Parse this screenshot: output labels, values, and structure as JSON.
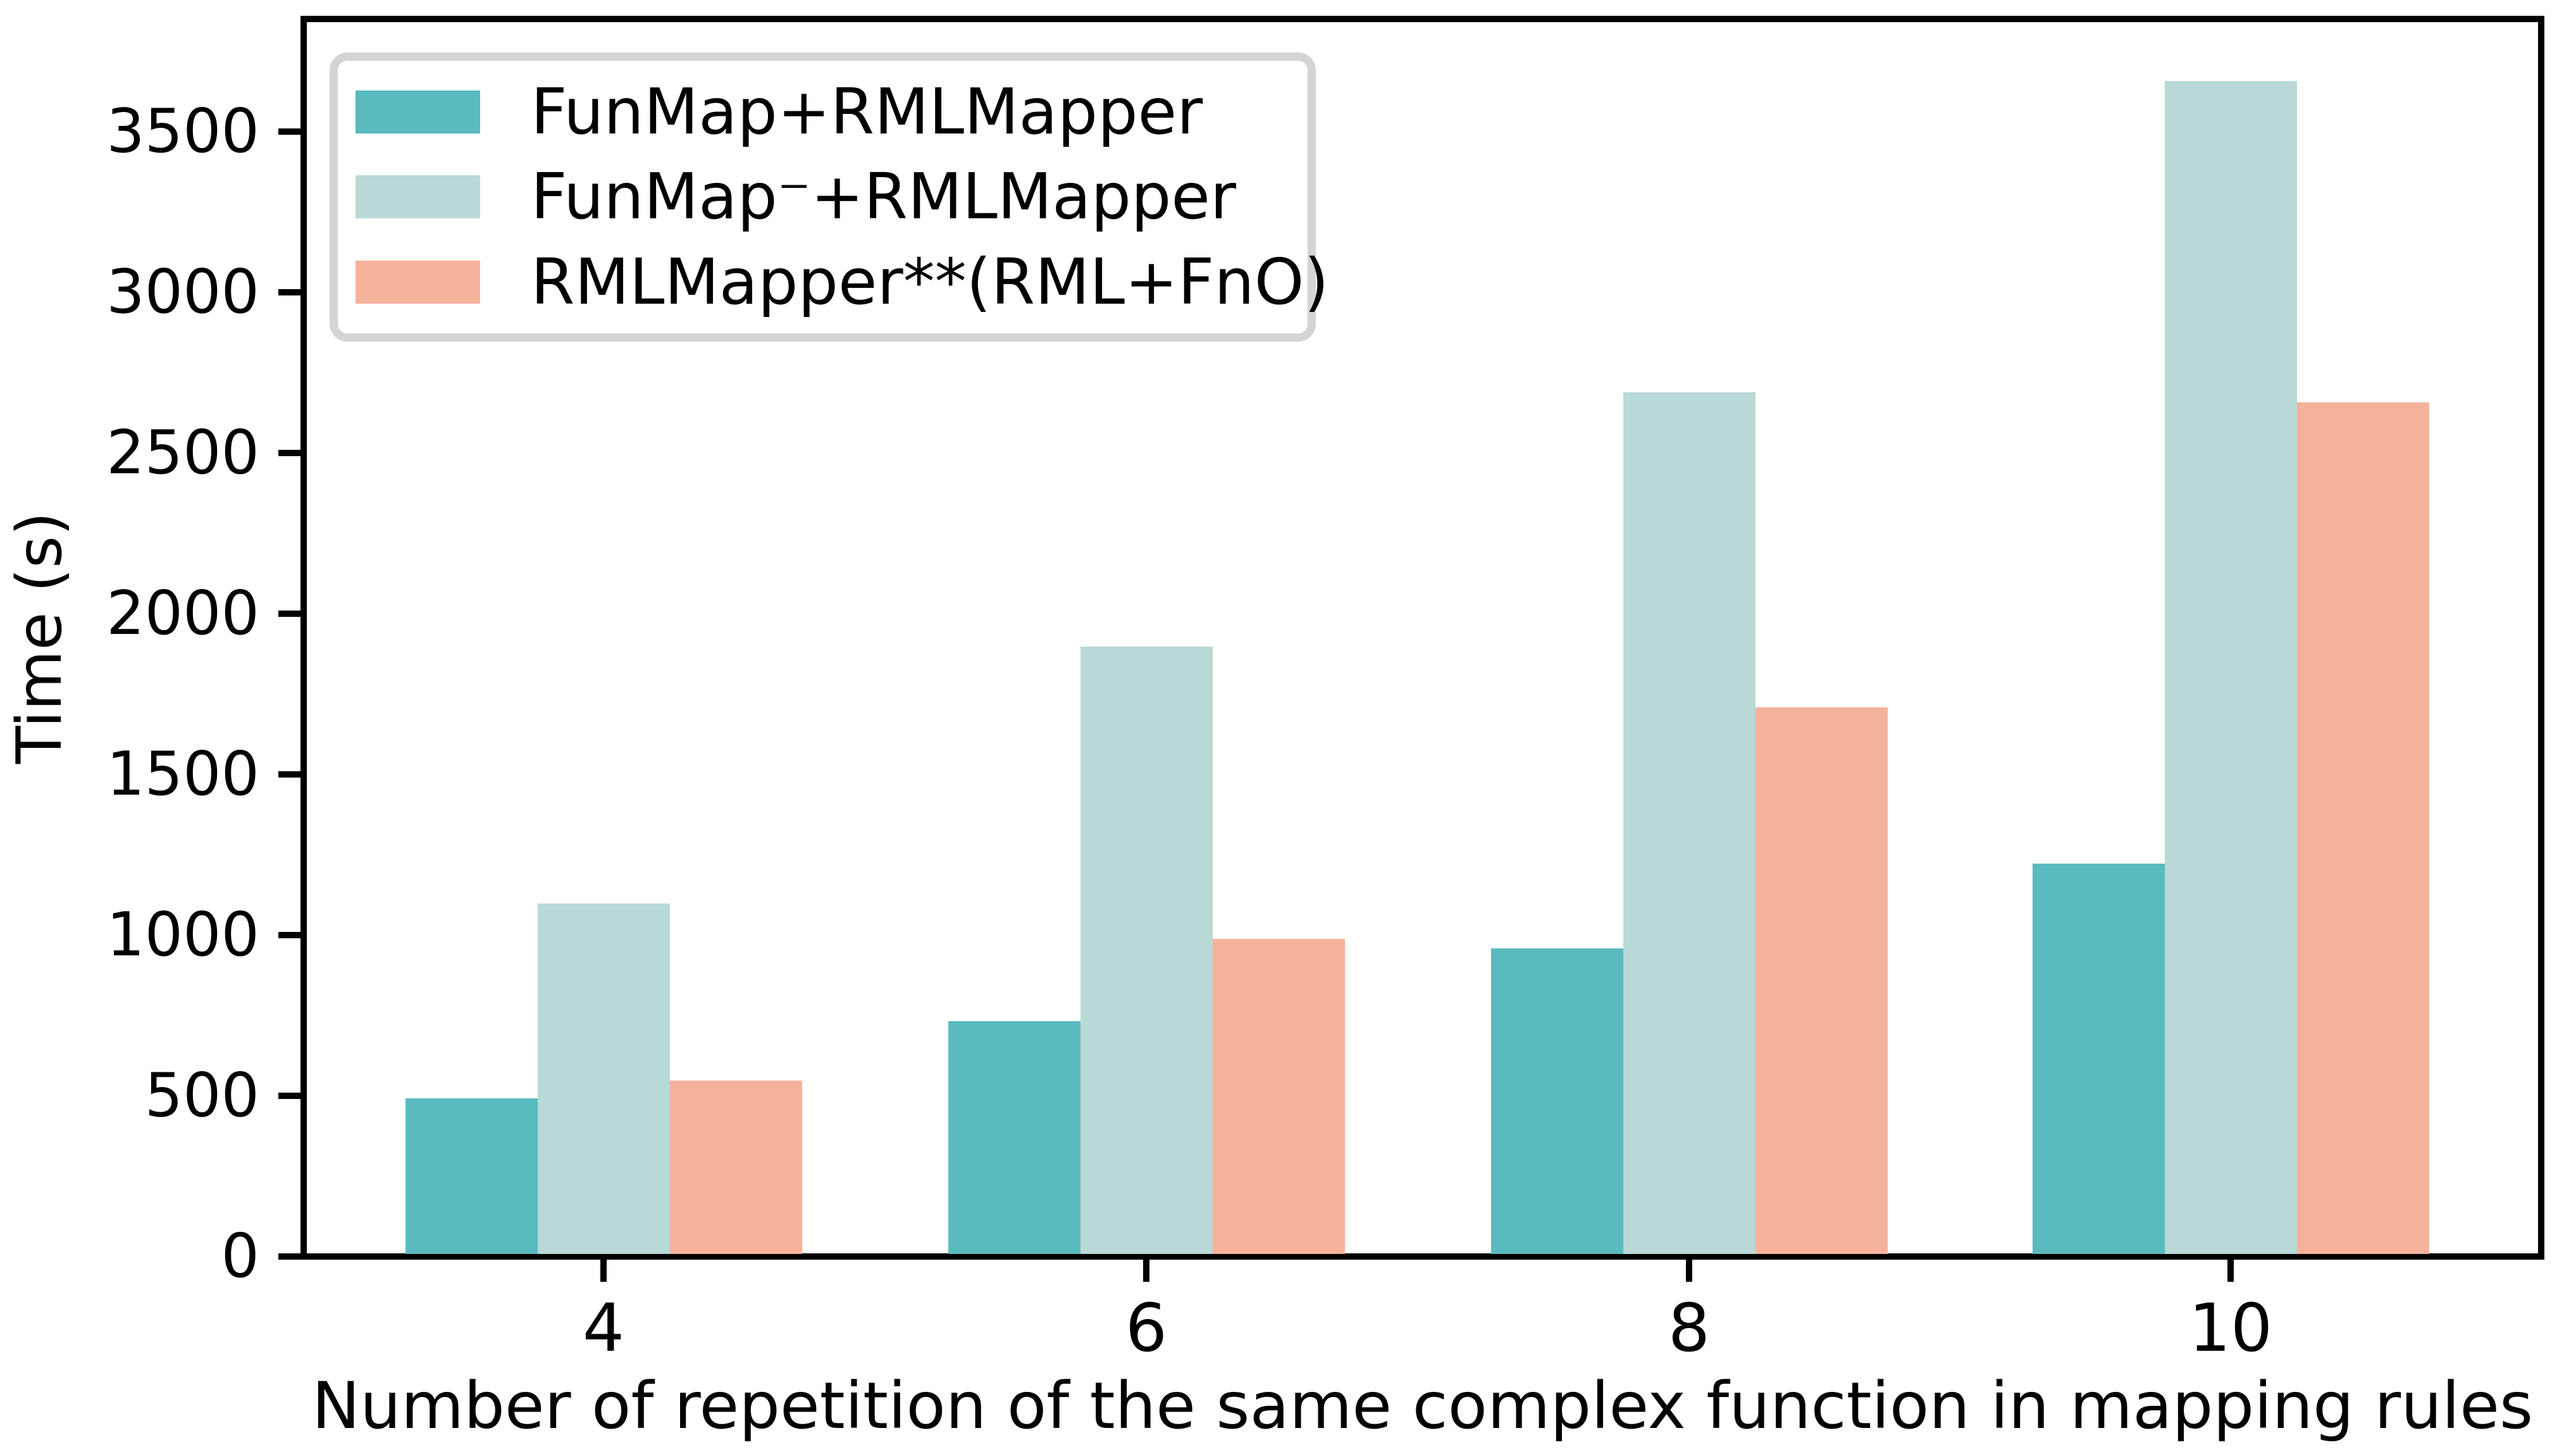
{
  "figure": {
    "xlabel": "Number of repetition of the same complex function in mapping rules",
    "ylabel": "Time (s)"
  },
  "chart_data": {
    "type": "bar",
    "title": "",
    "xlabel": "Number of repetition of the same complex function in mapping rules",
    "ylabel": "Time (s)",
    "categories": [
      "4",
      "6",
      "8",
      "10"
    ],
    "series": [
      {
        "name": "FunMap+RMLMapper",
        "color": "#59bbbe",
        "values": [
          485,
          725,
          950,
          1215
        ]
      },
      {
        "name": "FunMap⁻+RMLMapper",
        "color": "#b9d9d6",
        "values": [
          1090,
          1890,
          2680,
          3650
        ]
      },
      {
        "name": "RMLMapper**(RML+FnO)",
        "color": "#f5b29b",
        "values": [
          540,
          980,
          1700,
          2650
        ]
      }
    ],
    "ylim": [
      0,
      3840
    ],
    "yticks": [
      0,
      500,
      1000,
      1500,
      2000,
      2500,
      3000,
      3500
    ],
    "grid": false,
    "legend_position": "upper left",
    "colors": {
      "axis": "#000000",
      "text": "#000000",
      "legend_border": "#d4d4d4",
      "background": "#ffffff"
    }
  }
}
